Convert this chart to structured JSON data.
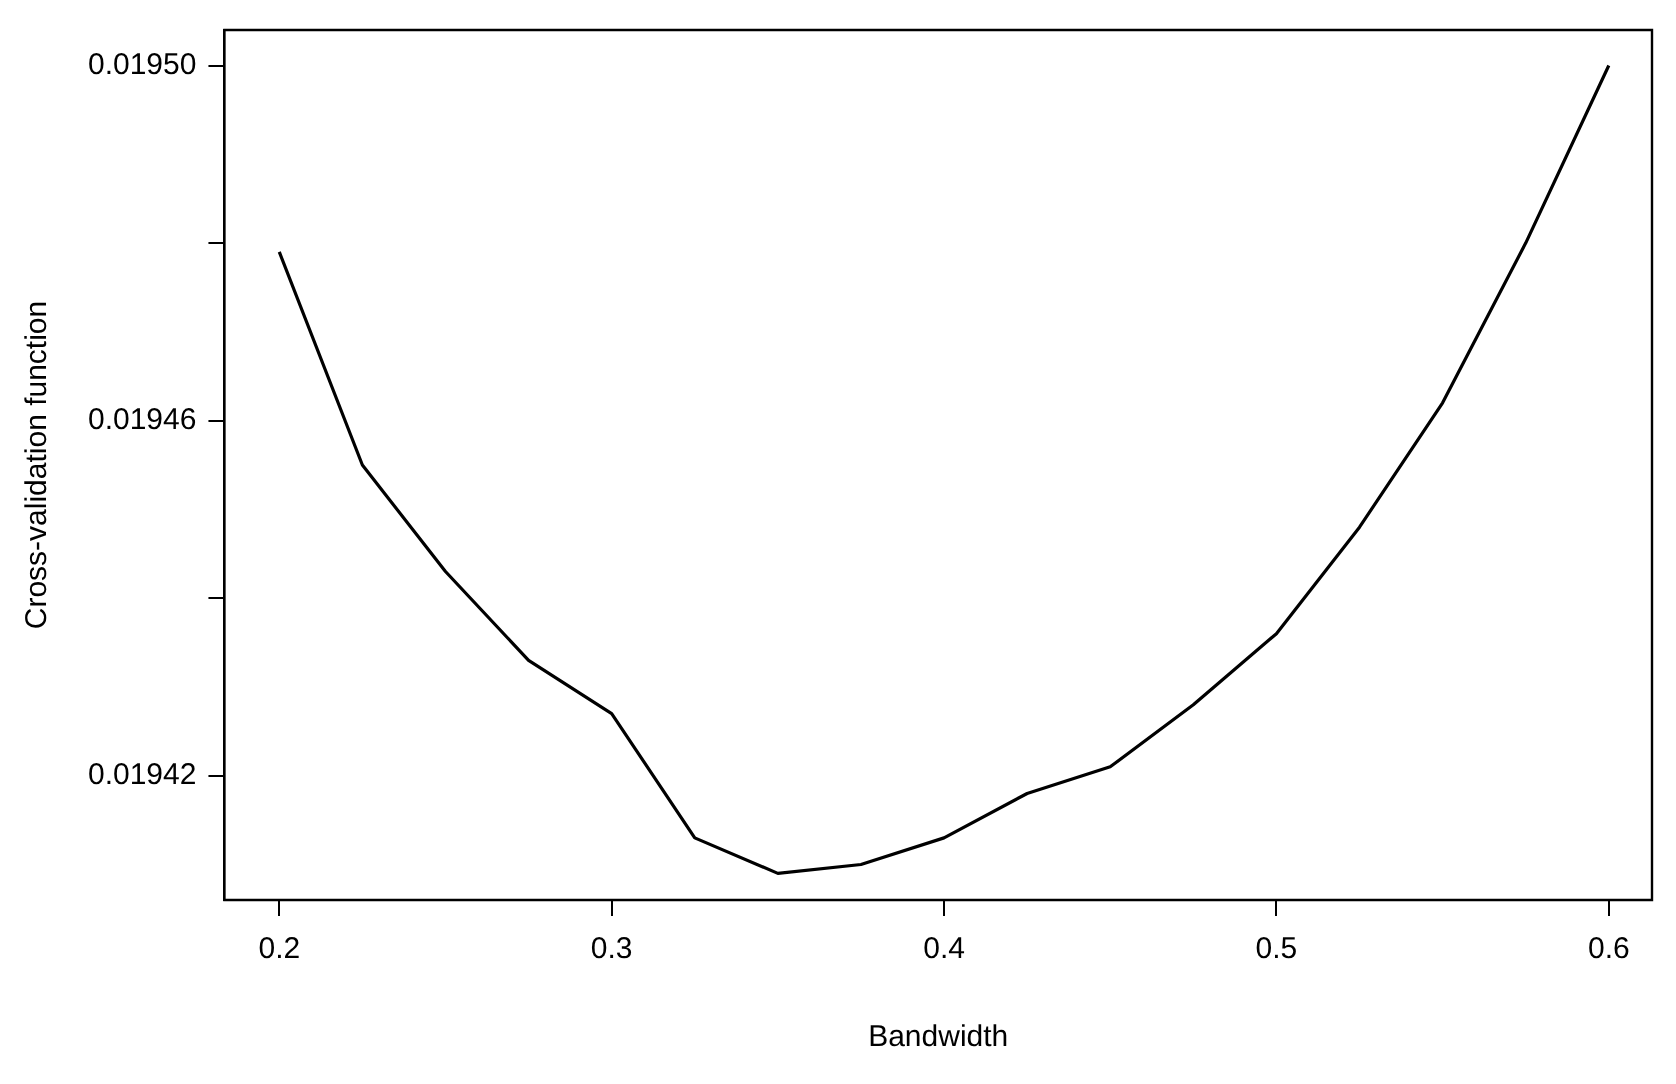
{
  "chart_data": {
    "type": "line",
    "xlabel": "Bandwidth",
    "ylabel": "Cross-validation function",
    "x": [
      0.2,
      0.225,
      0.25,
      0.275,
      0.3,
      0.325,
      0.35,
      0.375,
      0.4,
      0.425,
      0.45,
      0.475,
      0.5,
      0.525,
      0.55,
      0.575,
      0.6
    ],
    "series": [
      {
        "color": "#000000",
        "values": [
          0.019479,
          0.019455,
          0.019443,
          0.019433,
          0.019427,
          0.019413,
          0.019409,
          0.01941,
          0.019413,
          0.019418,
          0.019421,
          0.019428,
          0.019436,
          0.019448,
          0.019462,
          0.01948,
          0.0195
        ]
      }
    ],
    "xlim": [
      0.1835,
      0.613
    ],
    "ylim": [
      0.019406,
      0.019504
    ],
    "xticks": [
      {
        "value": 0.2,
        "label": "0.2"
      },
      {
        "value": 0.3,
        "label": "0.3"
      },
      {
        "value": 0.4,
        "label": "0.4"
      },
      {
        "value": 0.5,
        "label": "0.5"
      },
      {
        "value": 0.6,
        "label": "0.6"
      }
    ],
    "yticks": [
      {
        "value": 0.01942,
        "label": "0.01942"
      },
      {
        "value": 0.01944,
        "label": null
      },
      {
        "value": 0.01946,
        "label": "0.01946"
      },
      {
        "value": 0.01948,
        "label": null
      },
      {
        "value": 0.0195,
        "label": "0.01950"
      }
    ],
    "grid": false,
    "legend": false,
    "marker": "none",
    "line_style": "solid"
  }
}
